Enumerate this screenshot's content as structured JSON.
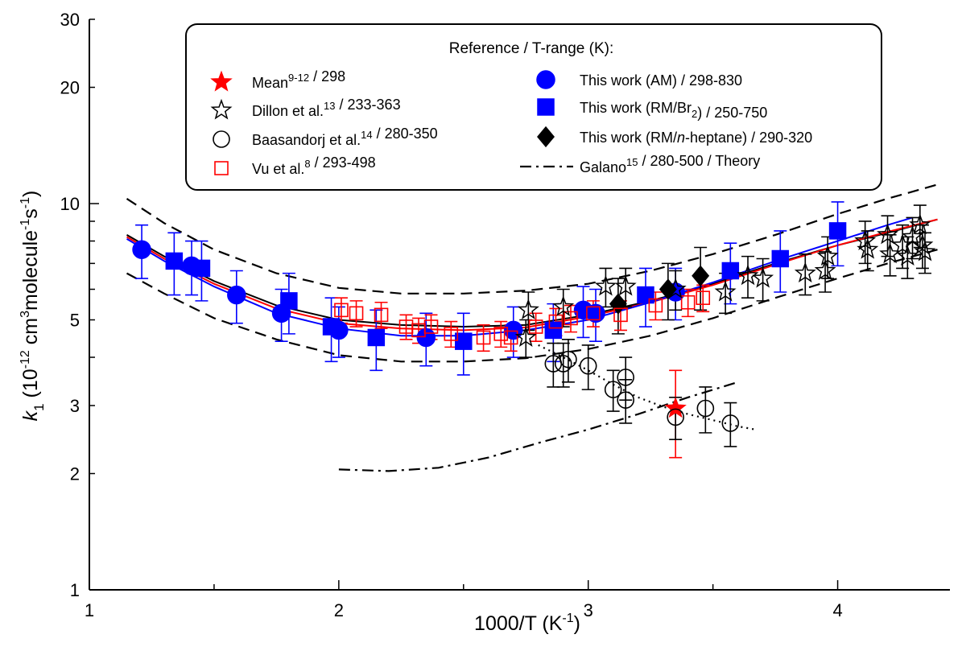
{
  "chart_data": {
    "type": "scatter",
    "xscale": "linear",
    "yscale": "log",
    "xlim": [
      1,
      4.45
    ],
    "ylim": [
      1,
      30
    ],
    "xlabel": "1000/T (K",
    "xlabel_sup": "-1",
    "xlabel_end": ")",
    "ylabel_k": "k",
    "ylabel_sub": "1",
    "ylabel_rest": " (10",
    "ylabel_sup1": "-12",
    "ylabel_mid1": " cm",
    "ylabel_sup2": "3",
    "ylabel_mid2": "molecule",
    "ylabel_sup3": "-1",
    "ylabel_mid3": "s",
    "ylabel_sup4": "-1",
    "ylabel_end": ")",
    "xticks": [
      {
        "v": 1,
        "label": "1"
      },
      {
        "v": 2,
        "label": "2"
      },
      {
        "v": 3,
        "label": "3"
      },
      {
        "v": 4,
        "label": "4"
      }
    ],
    "yticks": [
      {
        "v": 1,
        "label": "1"
      },
      {
        "v": 2,
        "label": "2"
      },
      {
        "v": 3,
        "label": "3"
      },
      {
        "v": 5,
        "label": "5"
      },
      {
        "v": 10,
        "label": "10"
      },
      {
        "v": 20,
        "label": "20"
      },
      {
        "v": 30,
        "label": "30"
      }
    ],
    "legend": {
      "title": "Reference / T-range (K):",
      "entries": [
        {
          "key": "mean",
          "parts": [
            [
              "Mean",
              ""
            ],
            [
              "9-12",
              "sup"
            ],
            [
              " / 298",
              ""
            ]
          ]
        },
        {
          "key": "dillon",
          "parts": [
            [
              "Dillon et al.",
              ""
            ],
            [
              "13",
              "sup"
            ],
            [
              " / 233-363",
              ""
            ]
          ]
        },
        {
          "key": "baasandorj",
          "parts": [
            [
              "Baasandorj et al.",
              ""
            ],
            [
              "14",
              "sup"
            ],
            [
              " / 280-350",
              ""
            ]
          ]
        },
        {
          "key": "vu",
          "parts": [
            [
              "Vu et al.",
              ""
            ],
            [
              "8",
              "sup"
            ],
            [
              " / 293-498",
              ""
            ]
          ]
        },
        {
          "key": "am",
          "parts": [
            [
              "This work (AM) / 298-830",
              ""
            ]
          ]
        },
        {
          "key": "rmbr",
          "parts": [
            [
              "This work (RM/Br",
              ""
            ],
            [
              "2",
              "sub"
            ],
            [
              ") / 250-750",
              ""
            ]
          ]
        },
        {
          "key": "rmhep",
          "parts": [
            [
              "This work (RM/",
              ""
            ],
            [
              "n",
              "italic"
            ],
            [
              "-heptane) / 290-320",
              ""
            ]
          ]
        },
        {
          "key": "galano",
          "parts": [
            [
              "Galano",
              ""
            ],
            [
              "15",
              "sup"
            ],
            [
              " / 280-500 / Theory",
              ""
            ]
          ]
        }
      ]
    },
    "series": [
      {
        "key": "am",
        "marker": "circle",
        "color": "#0000ff",
        "edge": "#0000ff",
        "errcolor": "#0000ff",
        "points": [
          [
            1.21,
            7.6,
            1.2
          ],
          [
            1.41,
            6.9,
            1.1
          ],
          [
            1.59,
            5.8,
            0.9
          ],
          [
            1.77,
            5.2,
            0.8
          ],
          [
            2.0,
            4.7,
            0.7
          ],
          [
            2.35,
            4.5,
            0.7
          ],
          [
            2.7,
            4.7,
            0.7
          ],
          [
            2.98,
            5.3,
            0.8
          ],
          [
            3.03,
            5.2,
            0.8
          ],
          [
            3.35,
            5.9,
            0.9
          ]
        ]
      },
      {
        "key": "rmbr",
        "marker": "square",
        "color": "#0000ff",
        "edge": "#0000ff",
        "errcolor": "#0000ff",
        "points": [
          [
            1.34,
            7.1,
            1.3
          ],
          [
            1.45,
            6.8,
            1.2
          ],
          [
            1.8,
            5.6,
            1.0
          ],
          [
            1.97,
            4.8,
            0.9
          ],
          [
            2.15,
            4.5,
            0.8
          ],
          [
            2.5,
            4.4,
            0.8
          ],
          [
            2.86,
            4.7,
            0.8
          ],
          [
            3.23,
            5.8,
            1.0
          ],
          [
            3.57,
            6.7,
            1.2
          ],
          [
            3.77,
            7.2,
            1.3
          ],
          [
            4.0,
            8.5,
            1.6
          ]
        ]
      },
      {
        "key": "rmhep",
        "marker": "diamond",
        "color": "#000000",
        "edge": "#000000",
        "errcolor": "#000000",
        "points": [
          [
            3.12,
            5.5,
            0.9
          ],
          [
            3.32,
            6.0,
            1.0
          ],
          [
            3.45,
            6.5,
            1.2
          ]
        ]
      },
      {
        "key": "mean",
        "marker": "star",
        "color": "#ff0000",
        "edge": "#ff0000",
        "errcolor": "#ff0000",
        "points": [
          [
            3.35,
            2.95,
            0.75
          ]
        ]
      },
      {
        "key": "vu",
        "marker": "square-open",
        "color": "none",
        "edge": "#ff0000",
        "errcolor": "#ff0000",
        "points": [
          [
            2.01,
            5.3,
            0.4
          ],
          [
            2.07,
            5.2,
            0.4
          ],
          [
            2.17,
            5.15,
            0.4
          ],
          [
            2.27,
            4.8,
            0.35
          ],
          [
            2.32,
            4.7,
            0.35
          ],
          [
            2.37,
            4.8,
            0.35
          ],
          [
            2.45,
            4.6,
            0.35
          ],
          [
            2.58,
            4.5,
            0.35
          ],
          [
            2.65,
            4.6,
            0.35
          ],
          [
            2.69,
            4.5,
            0.35
          ],
          [
            2.79,
            4.8,
            0.4
          ],
          [
            2.87,
            4.95,
            0.4
          ],
          [
            2.93,
            5.05,
            0.4
          ],
          [
            3.02,
            5.2,
            0.4
          ],
          [
            3.13,
            5.15,
            0.45
          ],
          [
            3.27,
            5.45,
            0.45
          ],
          [
            3.4,
            5.55,
            0.45
          ],
          [
            3.46,
            5.7,
            0.45
          ]
        ]
      },
      {
        "key": "dillon",
        "marker": "star-open",
        "color": "none",
        "edge": "#000000",
        "errcolor": "#000000",
        "points": [
          [
            2.75,
            4.5,
            0.5
          ],
          [
            2.76,
            5.3,
            0.6
          ],
          [
            2.9,
            5.4,
            0.6
          ],
          [
            3.07,
            6.1,
            0.7
          ],
          [
            3.15,
            6.1,
            0.7
          ],
          [
            3.35,
            6.0,
            0.7
          ],
          [
            3.55,
            5.9,
            0.7
          ],
          [
            3.64,
            6.5,
            0.8
          ],
          [
            3.7,
            6.4,
            0.8
          ],
          [
            3.87,
            6.6,
            0.8
          ],
          [
            3.95,
            6.7,
            0.8
          ],
          [
            3.96,
            7.3,
            0.9
          ],
          [
            4.11,
            8.0,
            1.0
          ],
          [
            4.12,
            7.6,
            0.9
          ],
          [
            4.2,
            8.3,
            1.0
          ],
          [
            4.21,
            7.4,
            0.9
          ],
          [
            4.26,
            7.8,
            1.0
          ],
          [
            4.28,
            7.3,
            0.9
          ],
          [
            4.3,
            8.2,
            1.0
          ],
          [
            4.33,
            8.8,
            1.1
          ],
          [
            4.34,
            7.8,
            1.0
          ],
          [
            4.35,
            7.5,
            0.9
          ]
        ]
      },
      {
        "key": "baasandorj",
        "marker": "circle-open",
        "color": "none",
        "edge": "#000000",
        "errcolor": "#000000",
        "points": [
          [
            2.86,
            3.85,
            0.5
          ],
          [
            2.9,
            3.85,
            0.5
          ],
          [
            2.92,
            3.95,
            0.5
          ],
          [
            3.0,
            3.8,
            0.5
          ],
          [
            3.1,
            3.3,
            0.4
          ],
          [
            3.15,
            3.1,
            0.4
          ],
          [
            3.15,
            3.55,
            0.45
          ],
          [
            3.35,
            2.8,
            0.35
          ],
          [
            3.47,
            2.95,
            0.4
          ],
          [
            3.57,
            2.7,
            0.35
          ]
        ]
      }
    ],
    "curves": [
      {
        "key": "fit_black",
        "style": "solid",
        "color": "#000000",
        "points": [
          [
            1.15,
            8.3
          ],
          [
            1.3,
            7.3
          ],
          [
            1.5,
            6.3
          ],
          [
            1.75,
            5.45
          ],
          [
            2.0,
            5.0
          ],
          [
            2.25,
            4.85
          ],
          [
            2.5,
            4.8
          ],
          [
            2.75,
            4.85
          ],
          [
            3.0,
            5.15
          ],
          [
            3.25,
            5.6
          ],
          [
            3.5,
            6.2
          ],
          [
            3.75,
            7.0
          ],
          [
            4.0,
            7.8
          ],
          [
            4.2,
            8.4
          ],
          [
            4.4,
            9.1
          ]
        ]
      },
      {
        "key": "fit_red",
        "style": "solid",
        "color": "#ff0000",
        "points": [
          [
            1.15,
            8.2
          ],
          [
            1.3,
            7.2
          ],
          [
            1.5,
            6.2
          ],
          [
            1.75,
            5.35
          ],
          [
            2.0,
            4.9
          ],
          [
            2.25,
            4.75
          ],
          [
            2.5,
            4.7
          ],
          [
            2.75,
            4.78
          ],
          [
            3.0,
            5.1
          ],
          [
            3.25,
            5.55
          ],
          [
            3.5,
            6.15
          ],
          [
            3.75,
            6.95
          ],
          [
            4.0,
            7.8
          ],
          [
            4.2,
            8.45
          ],
          [
            4.4,
            9.1
          ]
        ]
      },
      {
        "key": "fit_blue",
        "style": "solid",
        "color": "#0000ff",
        "points": [
          [
            1.15,
            8.1
          ],
          [
            1.3,
            7.1
          ],
          [
            1.5,
            6.1
          ],
          [
            1.75,
            5.2
          ],
          [
            2.0,
            4.75
          ],
          [
            2.25,
            4.55
          ],
          [
            2.5,
            4.55
          ],
          [
            2.75,
            4.7
          ],
          [
            3.0,
            5.0
          ],
          [
            3.25,
            5.55
          ],
          [
            3.5,
            6.25
          ],
          [
            3.75,
            7.1
          ],
          [
            4.0,
            8.0
          ],
          [
            4.2,
            8.8
          ],
          [
            4.3,
            9.2
          ]
        ]
      },
      {
        "key": "upper",
        "style": "dashed",
        "color": "#000000",
        "points": [
          [
            1.15,
            10.3
          ],
          [
            1.3,
            8.9
          ],
          [
            1.5,
            7.6
          ],
          [
            1.75,
            6.6
          ],
          [
            2.0,
            6.05
          ],
          [
            2.25,
            5.85
          ],
          [
            2.5,
            5.85
          ],
          [
            2.75,
            5.95
          ],
          [
            3.0,
            6.2
          ],
          [
            3.25,
            6.7
          ],
          [
            3.5,
            7.4
          ],
          [
            3.75,
            8.3
          ],
          [
            4.0,
            9.4
          ],
          [
            4.2,
            10.3
          ],
          [
            4.4,
            11.2
          ]
        ]
      },
      {
        "key": "lower",
        "style": "dashed",
        "color": "#000000",
        "points": [
          [
            1.15,
            6.6
          ],
          [
            1.3,
            5.85
          ],
          [
            1.5,
            5.05
          ],
          [
            1.75,
            4.45
          ],
          [
            2.0,
            4.05
          ],
          [
            2.25,
            3.9
          ],
          [
            2.5,
            3.9
          ],
          [
            2.75,
            3.98
          ],
          [
            3.0,
            4.2
          ],
          [
            3.25,
            4.55
          ],
          [
            3.5,
            5.05
          ],
          [
            3.75,
            5.7
          ],
          [
            4.0,
            6.4
          ],
          [
            4.2,
            7.0
          ],
          [
            4.4,
            7.6
          ]
        ]
      },
      {
        "key": "baas_fit",
        "style": "dotted",
        "color": "#000000",
        "points": [
          [
            2.8,
            4.3
          ],
          [
            2.9,
            4.0
          ],
          [
            3.0,
            3.7
          ],
          [
            3.1,
            3.4
          ],
          [
            3.2,
            3.15
          ],
          [
            3.3,
            2.98
          ],
          [
            3.4,
            2.85
          ],
          [
            3.5,
            2.75
          ],
          [
            3.6,
            2.65
          ],
          [
            3.67,
            2.6
          ]
        ]
      },
      {
        "key": "galano",
        "style": "dashdot",
        "color": "#000000",
        "points": [
          [
            2.0,
            2.05
          ],
          [
            2.2,
            2.03
          ],
          [
            2.4,
            2.07
          ],
          [
            2.6,
            2.2
          ],
          [
            2.8,
            2.4
          ],
          [
            3.0,
            2.6
          ],
          [
            3.2,
            2.85
          ],
          [
            3.4,
            3.15
          ],
          [
            3.6,
            3.45
          ]
        ]
      }
    ]
  }
}
